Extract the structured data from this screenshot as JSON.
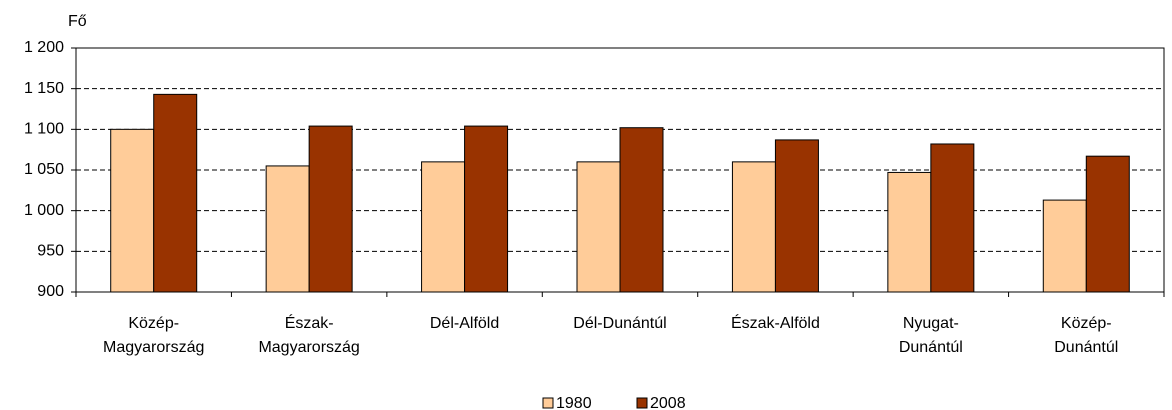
{
  "chart_data": {
    "type": "bar",
    "y_label": "Fő",
    "categories": [
      "Közép-\nMagyarország",
      "Észak-\nMagyarország",
      "Dél-Alföld",
      "Dél-Dunántúl",
      "Észak-Alföld",
      "Nyugat-\nDunántúl",
      "Közép-\nDunántúl"
    ],
    "series": [
      {
        "name": "1980",
        "color": "#ffcc99",
        "values": [
          1100,
          1055,
          1060,
          1060,
          1060,
          1047,
          1013
        ]
      },
      {
        "name": "2008",
        "color": "#993300",
        "values": [
          1143,
          1104,
          1104,
          1102,
          1087,
          1082,
          1067
        ]
      }
    ],
    "ylim": [
      900,
      1200
    ],
    "yticks": [
      900,
      950,
      {
        "value": 1000,
        "label": "1 000"
      },
      {
        "value": 1050,
        "label": "1 050"
      },
      {
        "value": 1100,
        "label": "1 100"
      },
      {
        "value": 1150,
        "label": "1 150"
      },
      {
        "value": 1200,
        "label": "1 200"
      }
    ],
    "grid": true
  }
}
